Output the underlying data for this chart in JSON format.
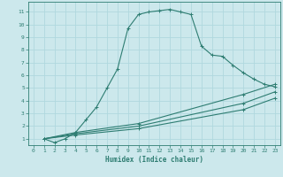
{
  "xlabel": "Humidex (Indice chaleur)",
  "bg_color": "#cce8ec",
  "line_color": "#2e7d72",
  "grid_color": "#b0d8de",
  "xlim": [
    -0.5,
    23.5
  ],
  "ylim": [
    0.5,
    11.8
  ],
  "xticks": [
    0,
    1,
    2,
    3,
    4,
    5,
    6,
    7,
    8,
    9,
    10,
    11,
    12,
    13,
    14,
    15,
    16,
    17,
    18,
    19,
    20,
    21,
    22,
    23
  ],
  "yticks": [
    1,
    2,
    3,
    4,
    5,
    6,
    7,
    8,
    9,
    10,
    11
  ],
  "curve1_x": [
    1,
    2,
    3,
    4,
    5,
    6,
    7,
    8,
    9,
    10,
    11,
    12,
    13,
    14,
    15,
    16,
    17,
    18,
    19,
    20,
    21,
    22,
    23
  ],
  "curve1_y": [
    1.0,
    0.7,
    1.0,
    1.5,
    2.5,
    3.5,
    5.0,
    6.5,
    9.7,
    10.8,
    11.0,
    11.1,
    11.2,
    11.0,
    10.8,
    8.3,
    7.6,
    7.5,
    6.8,
    6.2,
    5.7,
    5.3,
    5.1
  ],
  "curve2_x": [
    1,
    4,
    10,
    20,
    23
  ],
  "curve2_y": [
    1.0,
    1.5,
    2.2,
    4.5,
    5.3
  ],
  "curve3_x": [
    1,
    4,
    10,
    20,
    23
  ],
  "curve3_y": [
    1.0,
    1.4,
    2.0,
    3.8,
    4.7
  ],
  "curve4_x": [
    1,
    4,
    10,
    20,
    23
  ],
  "curve4_y": [
    1.0,
    1.3,
    1.8,
    3.3,
    4.2
  ]
}
